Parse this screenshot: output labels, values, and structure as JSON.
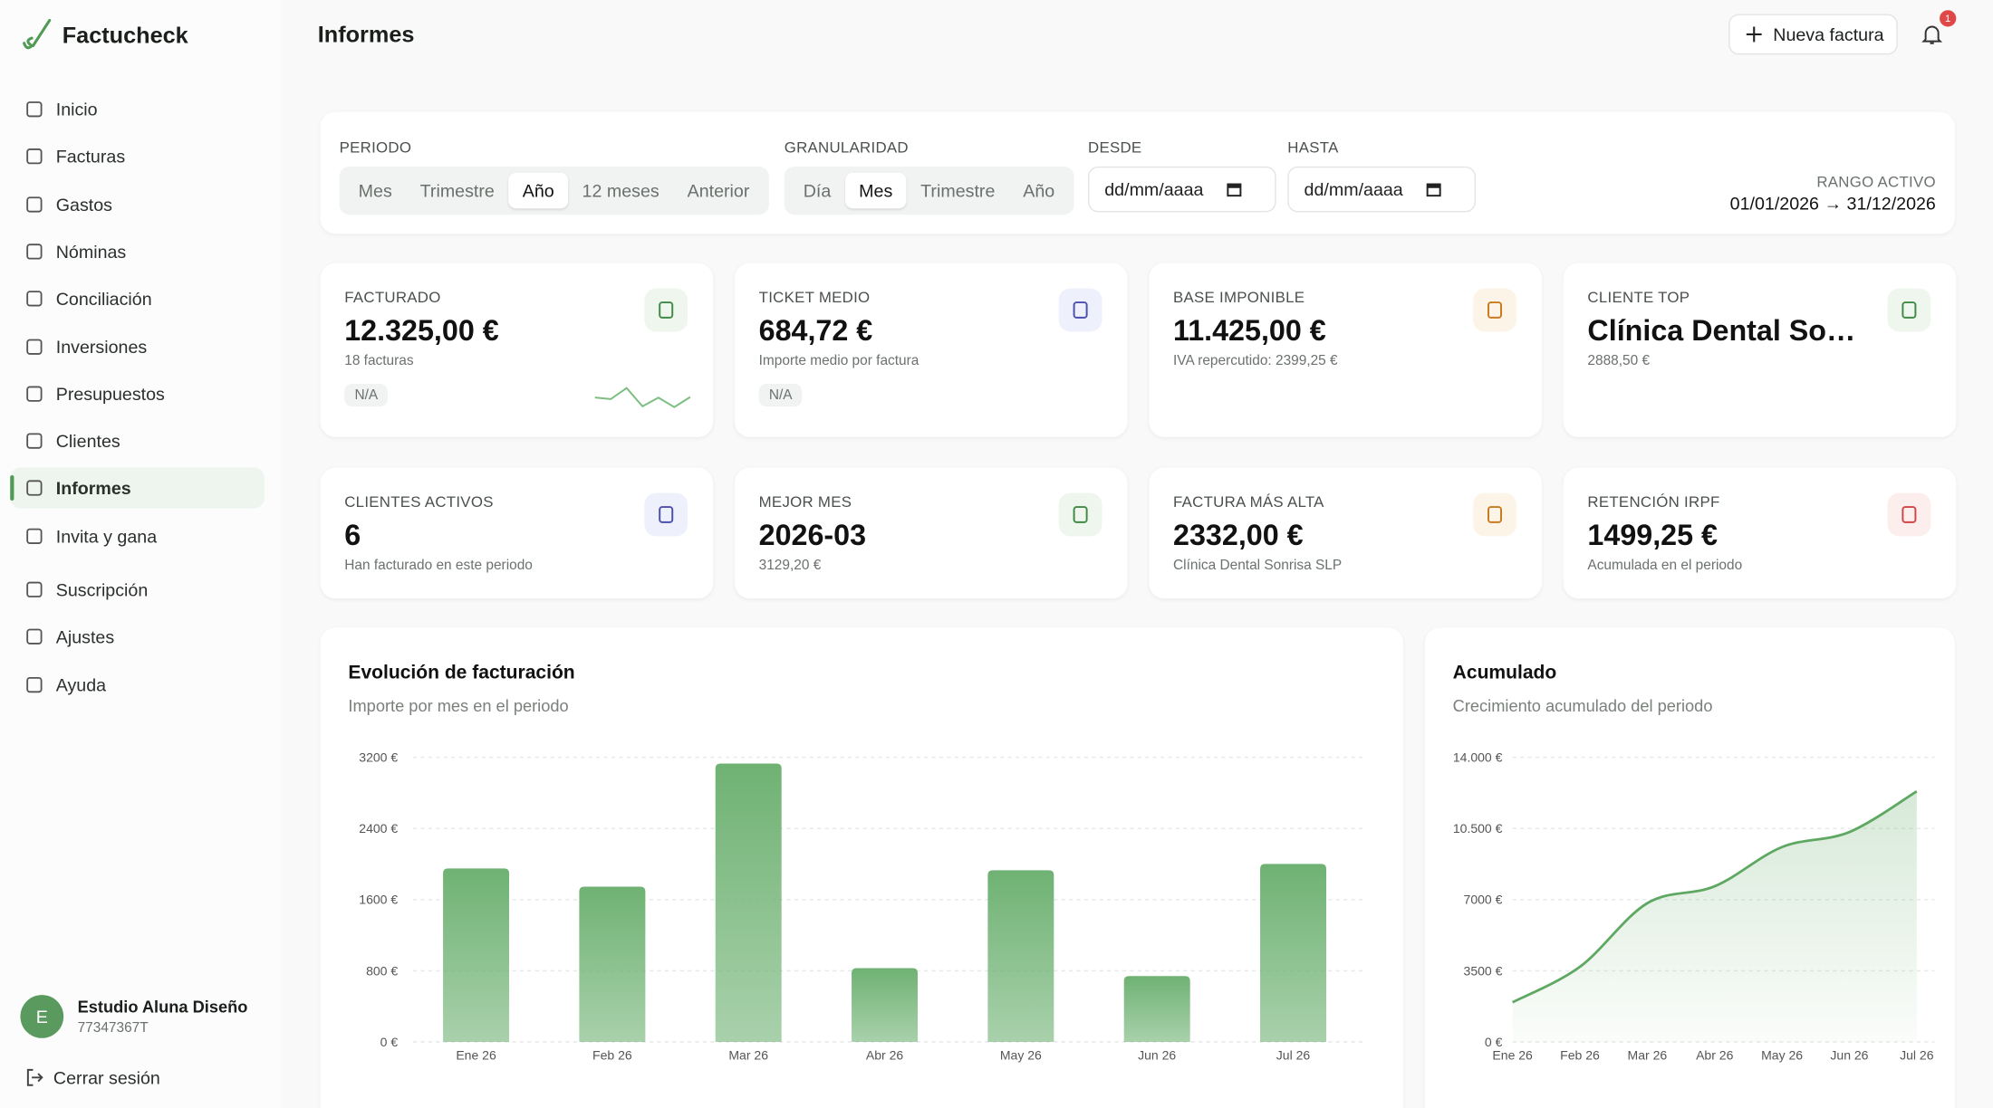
{
  "sidebar": {
    "brand": "Factucheck",
    "nav": [
      "Inicio",
      "Facturas",
      "Gastos",
      "Nóminas",
      "Conciliación",
      "Inversiones",
      "Presupuestos",
      "Clientes",
      "Informes",
      "Invita y gana",
      "Suscripción",
      "Ajustes",
      "Ayuda"
    ],
    "active": 8,
    "user": {
      "initial": "E",
      "name": "Estudio Aluna Diseño",
      "id": "77347367T"
    },
    "logout": "Cerrar sesión"
  },
  "header": {
    "title": "Informes",
    "new_invoice": "Nueva factura",
    "notifications": "1"
  },
  "filters": {
    "periodo": {
      "label": "PERIODO",
      "options": [
        "Mes",
        "Trimestre",
        "Año",
        "12 meses",
        "Anterior"
      ],
      "selected": 2
    },
    "granularidad": {
      "label": "GRANULARIDAD",
      "options": [
        "Día",
        "Mes",
        "Trimestre",
        "Año"
      ],
      "selected": 1
    },
    "desde": {
      "label": "DESDE",
      "placeholder": "dd/mm/aaaa"
    },
    "hasta": {
      "label": "HASTA",
      "placeholder": "dd/mm/aaaa"
    },
    "range": {
      "label": "RANGO ACTIVO",
      "value": "01/01/2026 → 31/12/2026"
    }
  },
  "kpis": [
    {
      "label": "FACTURADO",
      "value": "12.325,00 €",
      "sub": "18 facturas",
      "badge": "N/A",
      "color": "green"
    },
    {
      "label": "TICKET MEDIO",
      "value": "684,72 €",
      "sub": "Importe medio por factura",
      "badge": "N/A",
      "color": "indigo"
    },
    {
      "label": "BASE IMPONIBLE",
      "value": "11.425,00 €",
      "sub": "IVA repercutido: 2399,25 €",
      "color": "orange"
    },
    {
      "label": "CLIENTE TOP",
      "value": "Clínica Dental Sonrisa SLP",
      "sub": "2888,50 €",
      "color": "green"
    },
    {
      "label": "CLIENTES ACTIVOS",
      "value": "6",
      "sub": "Han facturado en este periodo",
      "color": "indigo"
    },
    {
      "label": "MEJOR MES",
      "value": "2026-03",
      "sub": "3129,20 €",
      "color": "green"
    },
    {
      "label": "FACTURA MÁS ALTA",
      "value": "2332,00 €",
      "sub": "Clínica Dental Sonrisa SLP",
      "color": "orange"
    },
    {
      "label": "RETENCIÓN IRPF",
      "value": "1499,25 €",
      "sub": "Acumulada en el periodo",
      "color": "red"
    }
  ],
  "chart_data": [
    {
      "type": "bar",
      "title": "Evolución de facturación",
      "subtitle": "Importe por mes en el periodo",
      "categories": [
        "Ene 26",
        "Feb 26",
        "Mar 26",
        "Abr 26",
        "May 26",
        "Jun 26",
        "Jul 26"
      ],
      "values": [
        1950,
        1745,
        3129.2,
        830,
        1930,
        740,
        2000.8
      ],
      "color": "#6fb273",
      "ylim": [
        0,
        3200
      ],
      "yticks": [
        {
          "value": 0,
          "label": "0 €"
        },
        {
          "value": 800,
          "label": "800 €"
        },
        {
          "value": 1600,
          "label": "1600 €"
        },
        {
          "value": 2400,
          "label": "2400 €"
        },
        {
          "value": 3200,
          "label": "3200 €"
        }
      ],
      "grid": true
    },
    {
      "type": "line",
      "title": "Acumulado",
      "subtitle": "Crecimiento acumulado del periodo",
      "categories": [
        "Ene 26",
        "Feb 26",
        "Mar 26",
        "Abr 26",
        "May 26",
        "Jun 26",
        "Jul 26"
      ],
      "values": [
        1950,
        3695,
        6824.2,
        7654.2,
        9584.2,
        10324.2,
        12325
      ],
      "color": "#5ea862",
      "ylim": [
        0,
        14000
      ],
      "yticks": [
        {
          "value": 0,
          "label": "0 €"
        },
        {
          "value": 3500,
          "label": "3500 €"
        },
        {
          "value": 7000,
          "label": "7000 €"
        },
        {
          "value": 10500,
          "label": "10.500 €"
        },
        {
          "value": 14000,
          "label": "14.000 €"
        }
      ],
      "grid": true
    }
  ]
}
